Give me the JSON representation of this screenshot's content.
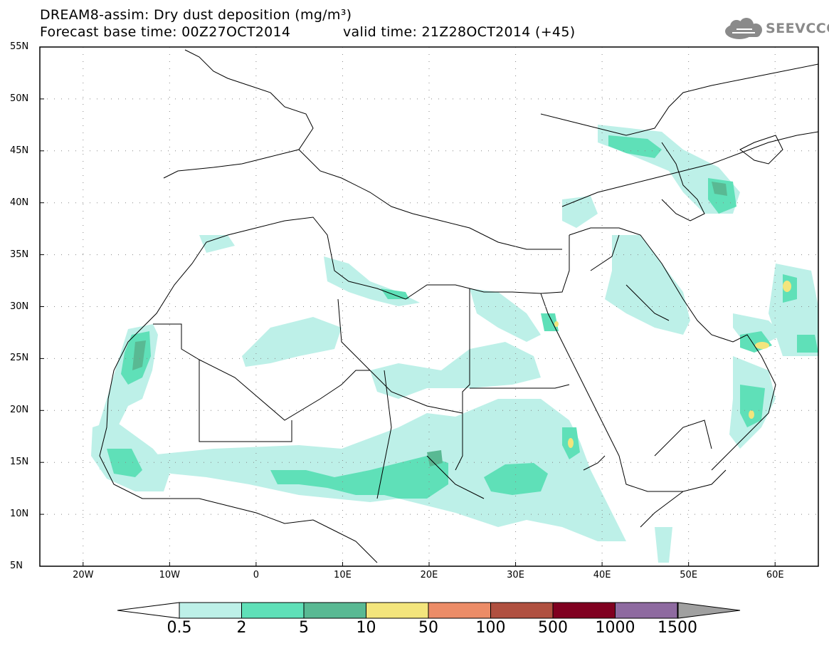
{
  "header": {
    "line1": "DREAM8-assim: Dry dust deposition (mg/m³)",
    "line2": "Forecast base time: 00Z27OCT2014",
    "valid": "valid time: 21Z28OCT2014 (+45)",
    "logo_text": "SEEVCCC",
    "logo_icon": "cloud-logo-icon"
  },
  "map": {
    "lat_labels": [
      "55N",
      "50N",
      "45N",
      "40N",
      "35N",
      "30N",
      "25N",
      "20N",
      "15N",
      "10N",
      "5N"
    ],
    "lon_labels": [
      "20W",
      "10W",
      "0",
      "10E",
      "20E",
      "30E",
      "40E",
      "50E",
      "60E"
    ],
    "lon_values": [
      -20,
      -10,
      0,
      10,
      20,
      30,
      40,
      50,
      60
    ],
    "lat_values": [
      55,
      50,
      45,
      40,
      35,
      30,
      25,
      20,
      15,
      10,
      5
    ],
    "extent": {
      "lon_min": -25,
      "lon_max": 65,
      "lat_min": 5,
      "lat_max": 55
    },
    "grid": "dotted",
    "colors": {
      "c05": "#bdf0e8",
      "c2": "#5fe0b8",
      "c5": "#59b993",
      "c10": "#f3e57c",
      "c50": "#ec8c67",
      "c100": "#b05040",
      "c500": "#800020",
      "c1000": "#8e6aa0",
      "c1500": "#a0a0a0"
    }
  },
  "legend": {
    "labels": [
      "0.5",
      "2",
      "5",
      "10",
      "50",
      "100",
      "500",
      "1000",
      "1500"
    ],
    "colors": [
      "#bdf0e8",
      "#5fe0b8",
      "#59b993",
      "#f3e57c",
      "#ec8c67",
      "#b05040",
      "#800020",
      "#8e6aa0",
      "#a0a0a0"
    ]
  }
}
